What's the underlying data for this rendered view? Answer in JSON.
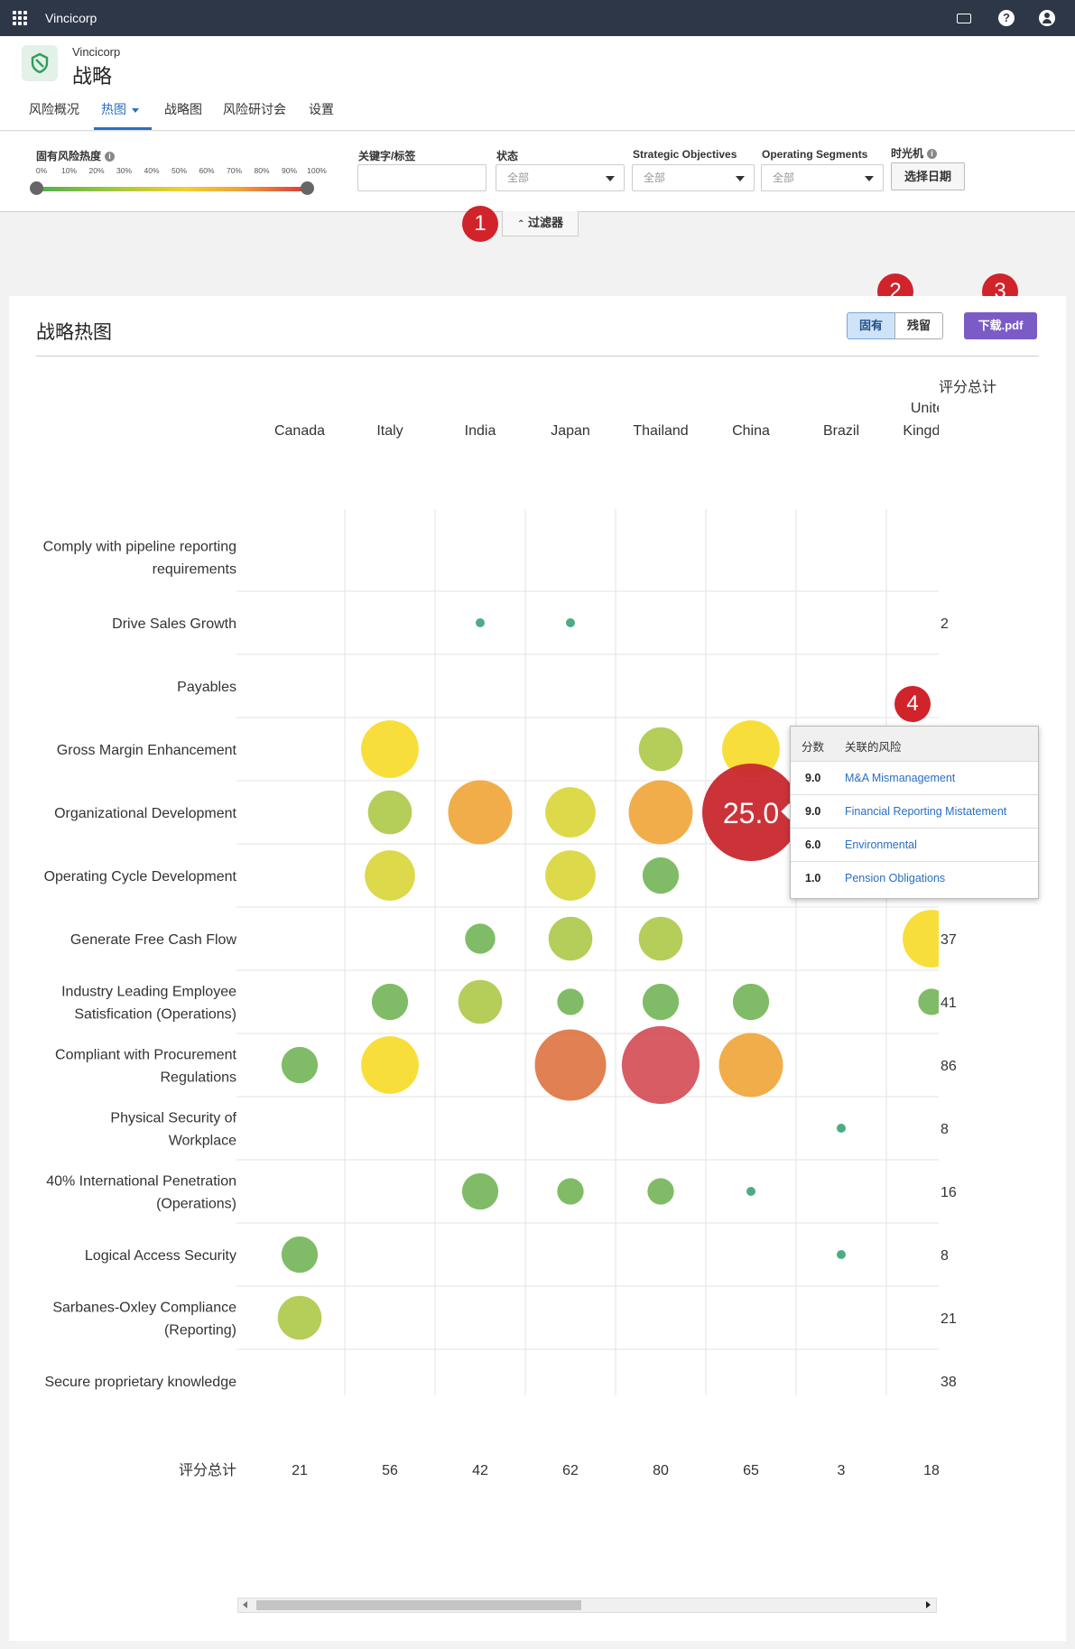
{
  "topbar": {
    "brand": "Vincicorp",
    "icons": [
      "apps-grid-icon",
      "keyboard-icon",
      "help-icon",
      "user-icon"
    ]
  },
  "header": {
    "company": "Vincicorp",
    "title": "战略",
    "tabs": [
      {
        "label": "风险概况"
      },
      {
        "label": "热图"
      },
      {
        "label": "战略图"
      },
      {
        "label": "风险研讨会"
      },
      {
        "label": "设置"
      }
    ]
  },
  "filters": {
    "risk_heat_label": "固有风险热度",
    "ticks": [
      "0%",
      "10%",
      "20%",
      "30%",
      "40%",
      "50%",
      "60%",
      "70%",
      "80%",
      "90%",
      "100%"
    ],
    "slider_range": [
      0,
      100
    ],
    "keyword_label": "关键字/标签",
    "keyword_value": "",
    "status_label": "状态",
    "status_value": "全部",
    "objectives_label": "Strategic Objectives",
    "objectives_value": "全部",
    "segments_label": "Operating Segments",
    "segments_value": "全部",
    "timemachine_label": "时光机",
    "date_button": "选择日期",
    "toggle_label": "过滤器"
  },
  "callouts": [
    "1",
    "2",
    "3",
    "4"
  ],
  "card": {
    "title": "战略热图",
    "mode_inherent": "固有",
    "mode_residual": "残留",
    "download": "下载.pdf"
  },
  "colors": {
    "green": "#6ab04c",
    "yellowgreen": "#a8c43c",
    "yellow": "#f7d817",
    "olive": "#d6d22a",
    "orange": "#ee9f2a",
    "redorange": "#dc6b35",
    "red": "#d04049",
    "crimson": "#c8282e",
    "teal": "#2e9e6f"
  },
  "chart_data": {
    "type": "bubble-heatmap",
    "title": "战略热图",
    "columns": [
      "Canada",
      "Italy",
      "India",
      "Japan",
      "Thailand",
      "China",
      "Brazil",
      "United Kingdom"
    ],
    "rows": [
      {
        "label": "Comply with pipeline reporting requirements",
        "total": ""
      },
      {
        "label": "Drive Sales Growth",
        "total": "2"
      },
      {
        "label": "Payables",
        "total": ""
      },
      {
        "label": "Gross Margin Enhancement",
        "total": ""
      },
      {
        "label": "Organizational Development",
        "total": ""
      },
      {
        "label": "Operating Cycle Development",
        "total": ""
      },
      {
        "label": "Generate Free Cash Flow",
        "total": "37"
      },
      {
        "label": "Industry Leading Employee Satisfication (Operations)",
        "total": "41"
      },
      {
        "label": "Compliant with Procurement Regulations",
        "total": "86"
      },
      {
        "label": "Physical Security of Workplace",
        "total": "8"
      },
      {
        "label": "40% International Penetration (Operations)",
        "total": "16"
      },
      {
        "label": "Logical Access Security",
        "total": "8"
      },
      {
        "label": "Sarbanes-Oxley Compliance (Reporting)",
        "total": "21"
      },
      {
        "label": "Secure proprietary knowledge",
        "total": "38"
      }
    ],
    "total_label": "评分总计",
    "column_totals": [
      "21",
      "56",
      "42",
      "62",
      "80",
      "65",
      "3",
      "18"
    ],
    "cells": [
      {
        "row": 1,
        "col": 2,
        "score": 1,
        "color": "teal"
      },
      {
        "row": 1,
        "col": 3,
        "score": 1,
        "color": "teal"
      },
      {
        "row": 3,
        "col": 1,
        "score": 16,
        "color": "yellow"
      },
      {
        "row": 3,
        "col": 4,
        "score": 9,
        "color": "yellowgreen"
      },
      {
        "row": 3,
        "col": 5,
        "score": 16,
        "color": "yellow"
      },
      {
        "row": 4,
        "col": 1,
        "score": 9,
        "color": "yellowgreen"
      },
      {
        "row": 4,
        "col": 2,
        "score": 20,
        "color": "orange"
      },
      {
        "row": 4,
        "col": 3,
        "score": 12,
        "color": "olive"
      },
      {
        "row": 4,
        "col": 4,
        "score": 20,
        "color": "orange"
      },
      {
        "row": 4,
        "col": 5,
        "score": 25,
        "color": "crimson",
        "label": "25.0"
      },
      {
        "row": 5,
        "col": 1,
        "score": 12,
        "color": "olive"
      },
      {
        "row": 5,
        "col": 3,
        "score": 12,
        "color": "olive"
      },
      {
        "row": 5,
        "col": 4,
        "score": 6,
        "color": "green"
      },
      {
        "row": 6,
        "col": 2,
        "score": 4,
        "color": "green"
      },
      {
        "row": 6,
        "col": 3,
        "score": 9,
        "color": "yellowgreen"
      },
      {
        "row": 6,
        "col": 4,
        "score": 9,
        "color": "yellowgreen"
      },
      {
        "row": 6,
        "col": 7,
        "score": 16,
        "color": "yellow"
      },
      {
        "row": 7,
        "col": 1,
        "score": 6,
        "color": "green"
      },
      {
        "row": 7,
        "col": 2,
        "score": 9,
        "color": "yellowgreen"
      },
      {
        "row": 7,
        "col": 3,
        "score": 3,
        "color": "green"
      },
      {
        "row": 7,
        "col": 4,
        "score": 6,
        "color": "green"
      },
      {
        "row": 7,
        "col": 5,
        "score": 6,
        "color": "green"
      },
      {
        "row": 7,
        "col": 7,
        "score": 3,
        "color": "green"
      },
      {
        "row": 8,
        "col": 0,
        "score": 6,
        "color": "green"
      },
      {
        "row": 8,
        "col": 1,
        "score": 16,
        "color": "yellow"
      },
      {
        "row": 8,
        "col": 3,
        "score": 25,
        "color": "redorange"
      },
      {
        "row": 8,
        "col": 4,
        "score": 30,
        "color": "red"
      },
      {
        "row": 8,
        "col": 5,
        "score": 20,
        "color": "orange"
      },
      {
        "row": 9,
        "col": 6,
        "score": 1,
        "color": "teal"
      },
      {
        "row": 10,
        "col": 2,
        "score": 6,
        "color": "green"
      },
      {
        "row": 10,
        "col": 3,
        "score": 3,
        "color": "green"
      },
      {
        "row": 10,
        "col": 4,
        "score": 3,
        "color": "green"
      },
      {
        "row": 10,
        "col": 5,
        "score": 1,
        "color": "teal"
      },
      {
        "row": 11,
        "col": 0,
        "score": 6,
        "color": "green"
      },
      {
        "row": 11,
        "col": 6,
        "score": 1,
        "color": "teal"
      },
      {
        "row": 12,
        "col": 0,
        "score": 9,
        "color": "yellowgreen"
      }
    ]
  },
  "tooltip": {
    "score_header": "分数",
    "risk_header": "关联的风险",
    "rows": [
      {
        "score": "9.0",
        "risk": "M&A Mismanagement"
      },
      {
        "score": "9.0",
        "risk": "Financial Reporting Mistatement"
      },
      {
        "score": "6.0",
        "risk": "Environmental"
      },
      {
        "score": "1.0",
        "risk": "Pension Obligations"
      }
    ]
  }
}
